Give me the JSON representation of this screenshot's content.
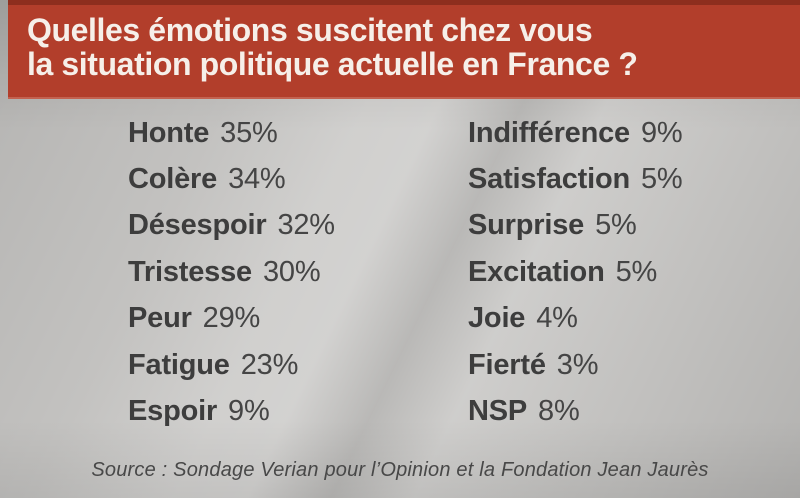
{
  "header": {
    "line1": "Quelles émotions suscitent chez vous",
    "line2": "la situation politique actuelle en France ?"
  },
  "emotions": {
    "left": [
      {
        "label": "Honte",
        "value": "35%"
      },
      {
        "label": "Colère",
        "value": "34%"
      },
      {
        "label": "Désespoir",
        "value": "32%"
      },
      {
        "label": "Tristesse",
        "value": "30%"
      },
      {
        "label": "Peur",
        "value": "29%"
      },
      {
        "label": "Fatigue",
        "value": "23%"
      },
      {
        "label": "Espoir",
        "value": "9%"
      }
    ],
    "right": [
      {
        "label": "Indifférence",
        "value": "9%"
      },
      {
        "label": "Satisfaction",
        "value": "5%"
      },
      {
        "label": "Surprise",
        "value": "5%"
      },
      {
        "label": "Excitation",
        "value": "5%"
      },
      {
        "label": "Joie",
        "value": "4%"
      },
      {
        "label": "Fierté",
        "value": "3%"
      },
      {
        "label": "NSP",
        "value": "8%"
      }
    ]
  },
  "source": {
    "text": "Source : Sondage Verian pour l’Opinion et la Fondation Jean Jaurès"
  },
  "colors": {
    "banner_red": "#b23e2b",
    "banner_red_dark": "#8d2e1e",
    "banner_text": "#f6efe9",
    "body_text": "#3d3d3d",
    "background": "#c9c8c6"
  },
  "chart_data": {
    "type": "table",
    "title": "Quelles émotions suscitent chez vous la situation politique actuelle en France ?",
    "categories": [
      "Honte",
      "Colère",
      "Désespoir",
      "Tristesse",
      "Peur",
      "Fatigue",
      "Espoir",
      "Indifférence",
      "Satisfaction",
      "Surprise",
      "Excitation",
      "Joie",
      "Fierté",
      "NSP"
    ],
    "values": [
      35,
      34,
      32,
      30,
      29,
      23,
      9,
      9,
      5,
      5,
      5,
      4,
      3,
      8
    ],
    "unit": "%",
    "layout": "two-column text list",
    "source": "Sondage Verian pour l’Opinion et la Fondation Jean Jaurès"
  }
}
